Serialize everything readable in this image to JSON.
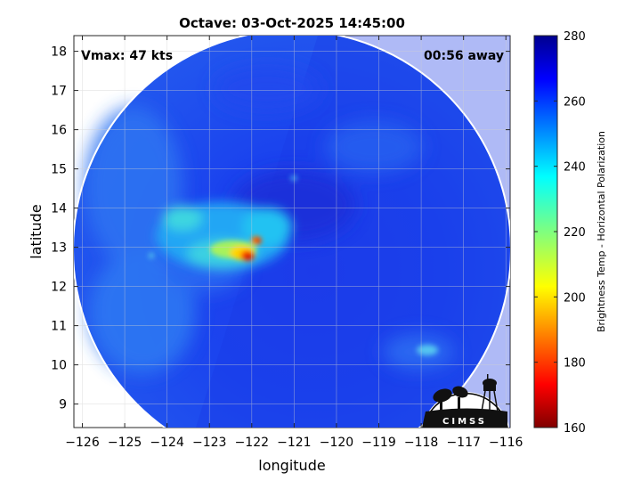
{
  "title": "Octave: 03-Oct-2025 14:45:00",
  "annotations": {
    "vmax": "Vmax: 47 kts",
    "time_away": "00:56 away"
  },
  "axes": {
    "xlabel": "longitude",
    "ylabel": "latitude",
    "xticks": [
      -126,
      -125,
      -124,
      -123,
      -122,
      -121,
      -120,
      -119,
      -118,
      -117,
      -116
    ],
    "yticks": [
      9,
      10,
      11,
      12,
      13,
      14,
      15,
      16,
      17,
      18
    ],
    "xlim": [
      -126.2,
      -115.9
    ],
    "ylim": [
      8.4,
      18.4
    ],
    "grid": true
  },
  "colorbar": {
    "label": "Brightness Temp - Horizontal Polarization",
    "ticks": [
      160,
      180,
      200,
      220,
      240,
      260,
      280
    ],
    "range": [
      160,
      280
    ],
    "colormap": "jet",
    "placement": "right"
  },
  "image": {
    "type": "microwave brightness temperature swath",
    "storm_center": {
      "lon": -121.5,
      "lat": 13.0
    },
    "swath_edge_lon": -121.6,
    "background_value": 262
  },
  "logo": {
    "text": "CIMSS"
  },
  "chart_data": {
    "type": "heatmap",
    "title": "Octave: 03-Oct-2025 14:45:00",
    "xlabel": "longitude",
    "ylabel": "latitude",
    "xlim": [
      -126.2,
      -115.9
    ],
    "ylim": [
      8.4,
      18.4
    ],
    "colorbar_range": [
      160,
      280
    ],
    "features": [
      {
        "lon": -122.1,
        "lat": 12.75,
        "value": 175
      },
      {
        "lon": -121.95,
        "lat": 13.1,
        "value": 185
      },
      {
        "lon": -122.6,
        "lat": 13.0,
        "value": 205
      },
      {
        "lon": -123.0,
        "lat": 13.35,
        "value": 228
      },
      {
        "lon": -122.2,
        "lat": 13.7,
        "value": 232
      },
      {
        "lon": -123.6,
        "lat": 13.9,
        "value": 238
      },
      {
        "lon": -123.9,
        "lat": 11.8,
        "value": 248
      },
      {
        "lon": -119.5,
        "lat": 14.2,
        "value": 252
      },
      {
        "lon": -117.8,
        "lat": 10.4,
        "value": 245
      }
    ]
  }
}
